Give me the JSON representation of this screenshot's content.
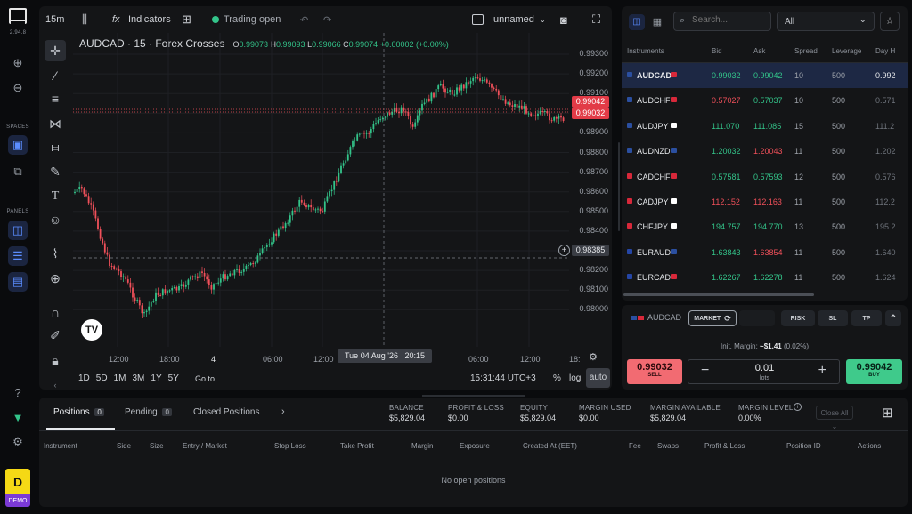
{
  "rail": {
    "version": "2.94.8",
    "spaces_label": "SPACES",
    "panels_label": "PANELS",
    "account_letter": "D",
    "account_mode": "DEMO"
  },
  "toolbar": {
    "interval": "15m",
    "indicators_label": "Indicators",
    "trading_status": "Trading open",
    "layout_name": "unnamed"
  },
  "chart": {
    "symbol": "AUDCAD · 15 · Forex Crosses",
    "ohlc": {
      "o_label": "O",
      "o": "0.99073",
      "h_label": "H",
      "h": "0.99093",
      "l_label": "L",
      "l": "0.99066",
      "c_label": "C",
      "c": "0.99074",
      "change": "+0.00002 (+0.00%)"
    },
    "price_labels": [
      "0.99300",
      "0.99200",
      "0.99100",
      "0.99000",
      "0.98900",
      "0.98800",
      "0.98700",
      "0.98600",
      "0.98500",
      "0.98400",
      "0.98300",
      "0.98200",
      "0.98100",
      "0.98000"
    ],
    "ask_tag": "0.99042",
    "bid_tag": "0.99032",
    "crosshair_price": "0.98385",
    "crosshair_time": "Tue 04 Aug '26   20:15",
    "time_labels": [
      "12:00",
      "18:00",
      "4",
      "06:00",
      "12:00",
      "06:00",
      "12:00",
      "18:"
    ],
    "ranges": [
      "1D",
      "5D",
      "1M",
      "3M",
      "1Y",
      "5Y"
    ],
    "goto_label": "Go to",
    "clock": "15:31:44 UTC+3",
    "percent_label": "%",
    "log_label": "log",
    "auto_label": "auto"
  },
  "watchlist": {
    "search_placeholder": "Search...",
    "filter_value": "All",
    "headers": [
      "Instruments",
      "Bid",
      "Ask",
      "Spread",
      "Leverage",
      "Day H"
    ],
    "rows": [
      {
        "symbol": "AUDCAD",
        "bid": "0.99032",
        "ask": "0.99042",
        "spread": "10",
        "leverage": "500",
        "day": "0.992",
        "dir": "up",
        "f1": "#2b4fa0",
        "f2": "#d8283a"
      },
      {
        "symbol": "AUDCHF",
        "bid": "0.57027",
        "ask": "0.57037",
        "spread": "10",
        "leverage": "500",
        "day": "0.571",
        "dir": "dnup",
        "f1": "#2b4fa0",
        "f2": "#d8283a"
      },
      {
        "symbol": "AUDJPY",
        "bid": "111.070",
        "ask": "111.085",
        "spread": "15",
        "leverage": "500",
        "day": "111.2",
        "dir": "up",
        "f1": "#2b4fa0",
        "f2": "#ffffff"
      },
      {
        "symbol": "AUDNZD",
        "bid": "1.20032",
        "ask": "1.20043",
        "spread": "11",
        "leverage": "500",
        "day": "1.202",
        "dir": "updn",
        "f1": "#2b4fa0",
        "f2": "#2b4fa0"
      },
      {
        "symbol": "CADCHF",
        "bid": "0.57581",
        "ask": "0.57593",
        "spread": "12",
        "leverage": "500",
        "day": "0.576",
        "dir": "up",
        "f1": "#d8283a",
        "f2": "#d8283a"
      },
      {
        "symbol": "CADJPY",
        "bid": "112.152",
        "ask": "112.163",
        "spread": "11",
        "leverage": "500",
        "day": "112.2",
        "dir": "dn",
        "f1": "#d8283a",
        "f2": "#ffffff"
      },
      {
        "symbol": "CHFJPY",
        "bid": "194.757",
        "ask": "194.770",
        "spread": "13",
        "leverage": "500",
        "day": "195.2",
        "dir": "up",
        "f1": "#d8283a",
        "f2": "#ffffff"
      },
      {
        "symbol": "EURAUD",
        "bid": "1.63843",
        "ask": "1.63854",
        "spread": "11",
        "leverage": "500",
        "day": "1.640",
        "dir": "updn",
        "f1": "#2546a6",
        "f2": "#2b4fa0"
      },
      {
        "symbol": "EURCAD",
        "bid": "1.62267",
        "ask": "1.62278",
        "spread": "11",
        "leverage": "500",
        "day": "1.624",
        "dir": "up",
        "f1": "#2546a6",
        "f2": "#d8283a"
      }
    ]
  },
  "trade": {
    "symbol": "AUDCAD",
    "order_type": "MARKET",
    "risk_label": "RISK",
    "sl_label": "SL",
    "tp_label": "TP",
    "margin_label": "Init. Margin:",
    "margin_value": "~$1.41",
    "margin_pct": "(0.02%)",
    "sell_price": "0.99032",
    "sell_label": "SELL",
    "buy_price": "0.99042",
    "buy_label": "BUY",
    "lots_value": "0.01",
    "lots_label": "lots"
  },
  "positions": {
    "tabs": [
      {
        "label": "Positions",
        "count": "0"
      },
      {
        "label": "Pending",
        "count": "0"
      },
      {
        "label": "Closed Positions"
      }
    ],
    "stats": [
      {
        "label": "BALANCE",
        "value": "$5,829.04"
      },
      {
        "label": "PROFIT & LOSS",
        "value": "$0.00"
      },
      {
        "label": "EQUITY",
        "value": "$5,829.04"
      },
      {
        "label": "MARGIN USED",
        "value": "$0.00"
      },
      {
        "label": "MARGIN AVAILABLE",
        "value": "$5,829.04"
      },
      {
        "label": "MARGIN LEVEL",
        "value": "0.00%"
      }
    ],
    "close_all": "Close All",
    "columns": [
      "Instrument",
      "Side",
      "Size",
      "Entry / Market",
      "Stop Loss",
      "Take Profit",
      "Margin",
      "Exposure",
      "Created At (EET)",
      "Fee",
      "Swaps",
      "Profit & Loss",
      "Position ID",
      "Actions"
    ],
    "empty_text": "No open positions"
  },
  "colors": {
    "up": "#33c48a",
    "down": "#f0505a",
    "accent": "#5b8dff",
    "sell": "#f26b72",
    "buy": "#3fca8b",
    "demo": "#f5d915"
  }
}
